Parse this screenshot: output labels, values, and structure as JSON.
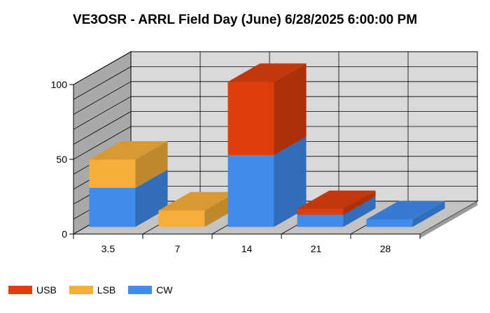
{
  "chart_data": {
    "type": "bar",
    "stacked": true,
    "three_d": true,
    "title": "VE3OSR - ARRL Field Day (June) 6/28/2025 6:00:00 PM",
    "xlabel": "",
    "ylabel": "",
    "categories": [
      "3.5",
      "7",
      "14",
      "21",
      "28"
    ],
    "x_tick_labels": [
      "3.5",
      "7",
      "14",
      "21",
      "28"
    ],
    "y_tick_labels": [
      "0",
      "50",
      "100"
    ],
    "ylim": [
      0,
      100
    ],
    "grid": true,
    "legend_position": "bottom-left",
    "series": [
      {
        "name": "CW",
        "color": "#3f8ced",
        "values": [
          26,
          0,
          48,
          8,
          5
        ]
      },
      {
        "name": "LSB",
        "color": "#f5ae3a",
        "values": [
          19,
          11,
          0,
          0,
          0
        ]
      },
      {
        "name": "USB",
        "color": "#dd3e0c",
        "values": [
          0,
          0,
          49,
          4,
          0
        ]
      }
    ]
  },
  "legend": [
    {
      "label": "USB",
      "color": "#dd3e0c"
    },
    {
      "label": "LSB",
      "color": "#f5ae3a"
    },
    {
      "label": "CW",
      "color": "#3f8ced"
    }
  ]
}
